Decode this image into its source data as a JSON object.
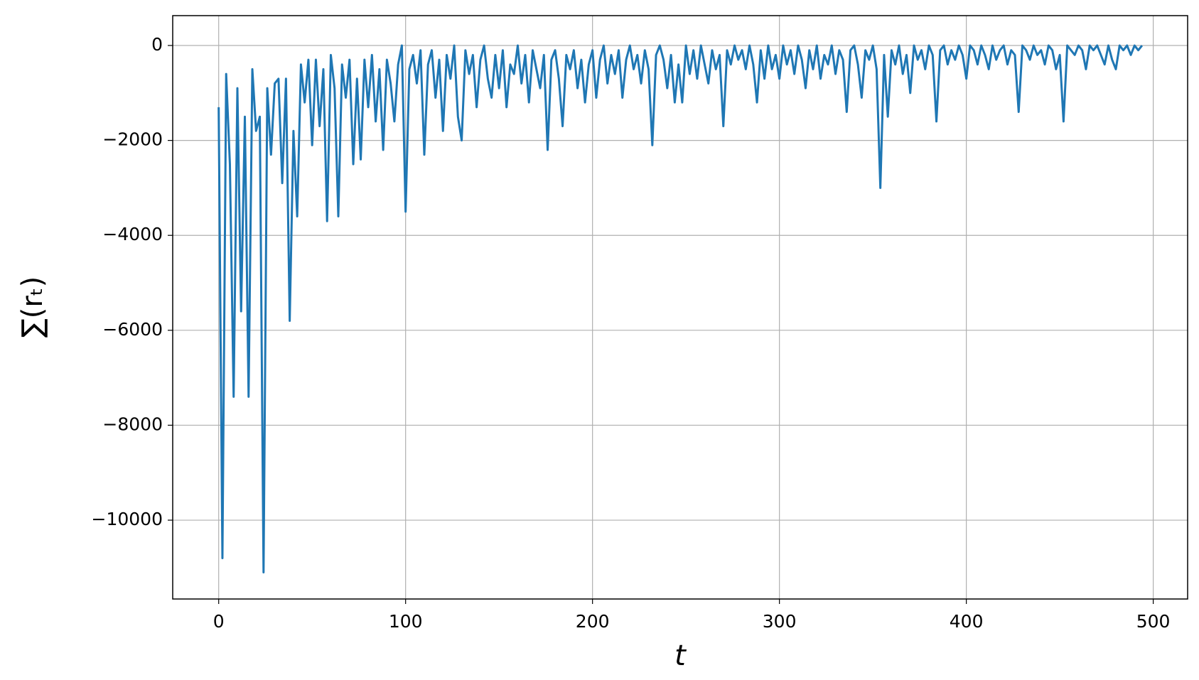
{
  "chart_data": {
    "type": "line",
    "x_label": "t",
    "y_label": "∑(rₜ)",
    "x": [
      0,
      2,
      4,
      6,
      8,
      10,
      12,
      14,
      16,
      18,
      20,
      22,
      24,
      26,
      28,
      30,
      32,
      34,
      36,
      38,
      40,
      42,
      44,
      46,
      48,
      50,
      52,
      54,
      56,
      58,
      60,
      62,
      64,
      66,
      68,
      70,
      72,
      74,
      76,
      78,
      80,
      82,
      84,
      86,
      88,
      90,
      92,
      94,
      96,
      98,
      100,
      102,
      104,
      106,
      108,
      110,
      112,
      114,
      116,
      118,
      120,
      122,
      124,
      126,
      128,
      130,
      132,
      134,
      136,
      138,
      140,
      142,
      144,
      146,
      148,
      150,
      152,
      154,
      156,
      158,
      160,
      162,
      164,
      166,
      168,
      170,
      172,
      174,
      176,
      178,
      180,
      182,
      184,
      186,
      188,
      190,
      192,
      194,
      196,
      198,
      200,
      202,
      204,
      206,
      208,
      210,
      212,
      214,
      216,
      218,
      220,
      222,
      224,
      226,
      228,
      230,
      232,
      234,
      236,
      238,
      240,
      242,
      244,
      246,
      248,
      250,
      252,
      254,
      256,
      258,
      260,
      262,
      264,
      266,
      268,
      270,
      272,
      274,
      276,
      278,
      280,
      282,
      284,
      286,
      288,
      290,
      292,
      294,
      296,
      298,
      300,
      302,
      304,
      306,
      308,
      310,
      312,
      314,
      316,
      318,
      320,
      322,
      324,
      326,
      328,
      330,
      332,
      334,
      336,
      338,
      340,
      342,
      344,
      346,
      348,
      350,
      352,
      354,
      356,
      358,
      360,
      362,
      364,
      366,
      368,
      370,
      372,
      374,
      376,
      378,
      380,
      382,
      384,
      386,
      388,
      390,
      392,
      394,
      396,
      398,
      400,
      402,
      404,
      406,
      408,
      410,
      412,
      414,
      416,
      418,
      420,
      422,
      424,
      426,
      428,
      430,
      432,
      434,
      436,
      438,
      440,
      442,
      444,
      446,
      448,
      450,
      452,
      454,
      456,
      458,
      460,
      462,
      464,
      466,
      468,
      470,
      472,
      474,
      476,
      478,
      480,
      482,
      484,
      486,
      488,
      490,
      492,
      494
    ],
    "values": [
      -1300,
      -10800,
      -600,
      -2500,
      -7400,
      -900,
      -5600,
      -1500,
      -7400,
      -500,
      -1800,
      -1500,
      -11100,
      -900,
      -2300,
      -800,
      -700,
      -2900,
      -700,
      -5800,
      -1800,
      -3600,
      -400,
      -1200,
      -300,
      -2100,
      -300,
      -1700,
      -500,
      -3700,
      -200,
      -900,
      -3600,
      -400,
      -1100,
      -300,
      -2500,
      -700,
      -2400,
      -300,
      -1300,
      -200,
      -1600,
      -500,
      -2200,
      -300,
      -800,
      -1600,
      -400,
      0,
      -3500,
      -500,
      -200,
      -800,
      -100,
      -2300,
      -400,
      -100,
      -1100,
      -300,
      -1800,
      -200,
      -700,
      0,
      -1500,
      -2000,
      -100,
      -600,
      -200,
      -1300,
      -300,
      0,
      -700,
      -1100,
      -200,
      -900,
      -100,
      -1300,
      -400,
      -600,
      0,
      -800,
      -200,
      -1200,
      -100,
      -500,
      -900,
      -200,
      -2200,
      -300,
      -100,
      -700,
      -1700,
      -200,
      -500,
      -100,
      -900,
      -300,
      -1200,
      -400,
      -100,
      -1100,
      -300,
      0,
      -800,
      -200,
      -600,
      -100,
      -1100,
      -300,
      0,
      -500,
      -200,
      -800,
      -100,
      -500,
      -2100,
      -200,
      0,
      -300,
      -900,
      -200,
      -1200,
      -400,
      -1200,
      0,
      -600,
      -100,
      -700,
      0,
      -400,
      -800,
      -100,
      -500,
      -200,
      -1700,
      -100,
      -400,
      0,
      -300,
      -100,
      -500,
      0,
      -400,
      -1200,
      -100,
      -700,
      0,
      -500,
      -200,
      -700,
      0,
      -400,
      -100,
      -600,
      0,
      -300,
      -900,
      -100,
      -500,
      0,
      -700,
      -200,
      -400,
      0,
      -600,
      -100,
      -300,
      -1400,
      -100,
      0,
      -400,
      -1100,
      -100,
      -300,
      0,
      -500,
      -3000,
      -200,
      -1500,
      -100,
      -400,
      0,
      -600,
      -200,
      -1000,
      0,
      -300,
      -100,
      -500,
      0,
      -200,
      -1600,
      -100,
      0,
      -400,
      -100,
      -300,
      0,
      -200,
      -700,
      0,
      -100,
      -400,
      0,
      -200,
      -500,
      0,
      -300,
      -100,
      0,
      -400,
      -100,
      -200,
      -1400,
      0,
      -100,
      -300,
      0,
      -200,
      -100,
      -400,
      0,
      -100,
      -500,
      -200,
      -1600,
      0,
      -100,
      -200,
      0,
      -100,
      -500,
      0,
      -100,
      0,
      -200,
      -400,
      0,
      -300,
      -500,
      0,
      -100,
      0,
      -200,
      0,
      -100,
      0
    ],
    "color": "#1f77b4",
    "xlim": [
      -24.6,
      518.4
    ],
    "xticks": [
      0,
      100,
      200,
      300,
      400,
      500
    ],
    "ylim": [
      -11661,
      629
    ],
    "yticks": [
      {
        "value": -10000,
        "label": "−10000"
      },
      {
        "value": -8000,
        "label": "−8000"
      },
      {
        "value": -6000,
        "label": "−6000"
      },
      {
        "value": -4000,
        "label": "−4000"
      },
      {
        "value": -2000,
        "label": "−2000"
      },
      0
    ],
    "grid": true
  }
}
